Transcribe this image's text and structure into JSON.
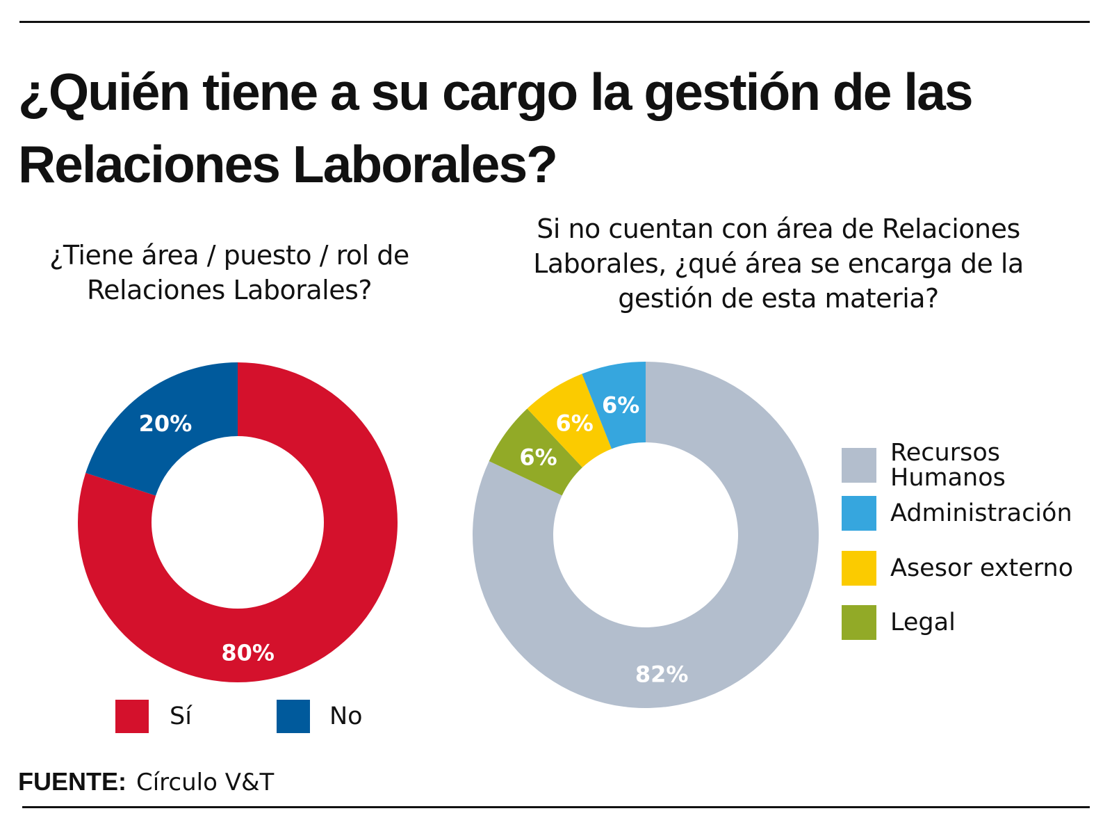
{
  "title": "¿Quién tiene a su cargo la gestión de las Relaciones Laborales?",
  "source": {
    "label": "FUENTE:",
    "value": "Círculo V&T"
  },
  "chart_data": [
    {
      "type": "pie",
      "donut": true,
      "title": "¿Tiene área / puesto / rol de Relaciones Laborales?",
      "categories": [
        "Sí",
        "No"
      ],
      "values": [
        80,
        20
      ],
      "data_labels": [
        "80%",
        "20%"
      ],
      "colors": [
        "#d4112c",
        "#005a9c"
      ],
      "legend_position": "bottom"
    },
    {
      "type": "pie",
      "donut": true,
      "title": "Si no cuentan con área de Relaciones Laborales, ¿qué área se encarga de la gestión de esta materia?",
      "categories": [
        "Recursos Humanos",
        "Administración",
        "Asesor externo",
        "Legal"
      ],
      "values": [
        82,
        6,
        6,
        6
      ],
      "data_labels": [
        "82%",
        "6%",
        "6%",
        "6%"
      ],
      "colors": [
        "#b3becd",
        "#36a6de",
        "#fbcb00",
        "#92aa27"
      ],
      "legend_position": "right"
    }
  ]
}
